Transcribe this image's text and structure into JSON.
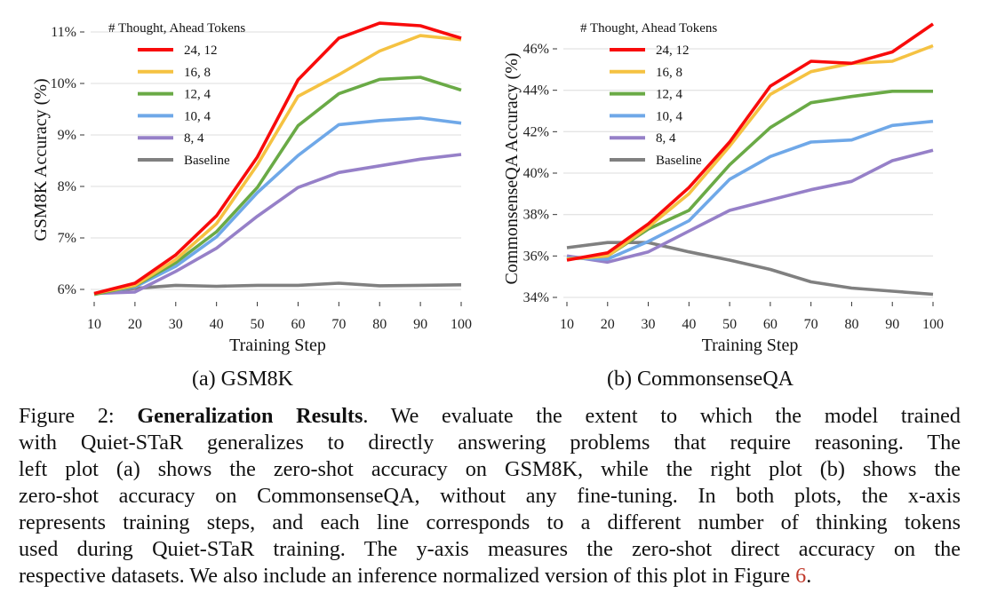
{
  "chart_data": [
    {
      "type": "line",
      "id": "gsm8k",
      "title": "",
      "subcaption": "(a) GSM8K",
      "xlabel": "Training Step",
      "ylabel": "GSM8K Accuracy (%)",
      "x": [
        10,
        20,
        30,
        40,
        50,
        60,
        70,
        80,
        90,
        100
      ],
      "xticks": [
        "10",
        "20",
        "30",
        "40",
        "50",
        "60",
        "70",
        "80",
        "90",
        "100"
      ],
      "yticks": [
        6,
        7,
        8,
        9,
        10,
        11
      ],
      "ytick_labels": [
        "6%",
        "7%",
        "8%",
        "9%",
        "10%",
        "11%"
      ],
      "ylim": [
        5.8,
        11.2
      ],
      "grid": true,
      "legend_title": "# Thought, Ahead Tokens",
      "legend_position": "top-left",
      "series": [
        {
          "name": "24, 12",
          "color": "#f80b0b",
          "values": [
            5.92,
            6.12,
            6.67,
            7.43,
            8.57,
            10.07,
            10.88,
            11.17,
            11.12,
            10.88
          ]
        },
        {
          "name": "16, 8",
          "color": "#f5c242",
          "values": [
            5.92,
            6.08,
            6.58,
            7.28,
            8.42,
            9.75,
            10.17,
            10.63,
            10.93,
            10.85
          ]
        },
        {
          "name": "12, 4",
          "color": "#6aaa46",
          "values": [
            5.9,
            6.07,
            6.52,
            7.12,
            7.98,
            9.18,
            9.8,
            10.08,
            10.12,
            9.87
          ]
        },
        {
          "name": "10, 4",
          "color": "#6fa8e8",
          "values": [
            5.92,
            6.05,
            6.45,
            7.02,
            7.88,
            8.6,
            9.2,
            9.28,
            9.33,
            9.23
          ]
        },
        {
          "name": "8, 4",
          "color": "#9680c8",
          "values": [
            5.92,
            5.95,
            6.35,
            6.8,
            7.42,
            7.98,
            8.27,
            8.4,
            8.53,
            8.62
          ]
        },
        {
          "name": "Baseline",
          "color": "#808080",
          "values": [
            5.92,
            6.02,
            6.08,
            6.06,
            6.08,
            6.08,
            6.12,
            6.07,
            6.08,
            6.09
          ]
        }
      ]
    },
    {
      "type": "line",
      "id": "commonsenseqa",
      "title": "",
      "subcaption": "(b) CommonsenseQA",
      "xlabel": "Training Step",
      "ylabel": "CommonsenseQA Accuracy (%)",
      "x": [
        10,
        20,
        30,
        40,
        50,
        60,
        70,
        80,
        90,
        100
      ],
      "xticks": [
        "10",
        "20",
        "30",
        "40",
        "50",
        "60",
        "70",
        "80",
        "90",
        "100"
      ],
      "yticks": [
        34,
        36,
        38,
        40,
        42,
        44,
        46
      ],
      "ytick_labels": [
        "34%",
        "36%",
        "38%",
        "40%",
        "42%",
        "44%",
        "46%"
      ],
      "ylim": [
        33.6,
        47.4
      ],
      "grid": true,
      "legend_title": "# Thought, Ahead Tokens",
      "legend_position": "top-left",
      "series": [
        {
          "name": "24, 12",
          "color": "#f80b0b",
          "values": [
            35.8,
            36.15,
            37.55,
            39.3,
            41.5,
            44.2,
            45.4,
            45.3,
            45.85,
            47.2
          ]
        },
        {
          "name": "16, 8",
          "color": "#f5c242",
          "values": [
            35.85,
            36.0,
            37.4,
            39.0,
            41.3,
            43.8,
            44.9,
            45.3,
            45.4,
            46.15
          ]
        },
        {
          "name": "12, 4",
          "color": "#6aaa46",
          "values": [
            35.85,
            36.0,
            37.3,
            38.2,
            40.4,
            42.2,
            43.4,
            43.7,
            43.95,
            43.95
          ]
        },
        {
          "name": "10, 4",
          "color": "#6fa8e8",
          "values": [
            35.9,
            35.85,
            36.7,
            37.7,
            39.7,
            40.8,
            41.5,
            41.6,
            42.3,
            42.5
          ]
        },
        {
          "name": "8, 4",
          "color": "#9680c8",
          "values": [
            36.0,
            35.7,
            36.2,
            37.2,
            38.2,
            38.7,
            39.2,
            39.6,
            40.6,
            41.1
          ]
        },
        {
          "name": "Baseline",
          "color": "#808080",
          "values": [
            36.4,
            36.65,
            36.65,
            36.2,
            35.8,
            35.35,
            34.75,
            34.45,
            34.3,
            34.15
          ]
        }
      ]
    }
  ],
  "caption": {
    "figure_label": "Figure 2:",
    "bold_title": "Generalization Results",
    "lines": [
      ". We evaluate the extent to which the model trained",
      "with Quiet-STaR generalizes to directly answering problems that require reasoning. The",
      "left plot (a) shows the zero-shot accuracy on GSM8K, while the right plot (b) shows the",
      "zero-shot accuracy on CommonsenseQA, without any fine-tuning. In both plots, the x-axis",
      "represents training steps, and each line corresponds to a different number of thinking tokens",
      "used during Quiet-STaR training. The y-axis measures the zero-shot direct accuracy on the",
      "respective datasets. We also include an inference normalized version of this plot in Figure"
    ],
    "figure_ref": "6",
    "end": "."
  }
}
